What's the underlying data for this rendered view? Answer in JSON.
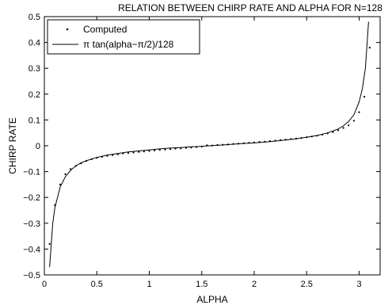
{
  "chart_data": {
    "type": "line",
    "title": "RELATION BETWEEN CHIRP RATE AND ALPHA FOR N=128",
    "xlabel": "ALPHA",
    "ylabel": "CHIRP RATE",
    "xlim": [
      0,
      3.2
    ],
    "ylim": [
      -0.5,
      0.5
    ],
    "xticks": [
      0,
      0.5,
      1,
      1.5,
      2,
      2.5,
      3
    ],
    "xtick_labels": [
      "0",
      "0.5",
      "1",
      "1.5",
      "2",
      "2.5",
      "3"
    ],
    "yticks": [
      -0.5,
      -0.4,
      -0.3,
      -0.2,
      -0.1,
      0,
      0.1,
      0.2,
      0.3,
      0.4,
      0.5
    ],
    "ytick_labels": [
      "−0.5",
      "−0.4",
      "−0.3",
      "−0.2",
      "−0.1",
      "0",
      "0.1",
      "0.2",
      "0.3",
      "0.4",
      "0.5"
    ],
    "grid": false,
    "legend_position": "top-left",
    "colors": {
      "line": "#000000",
      "marker": "#000000",
      "axes": "#000000"
    },
    "series": [
      {
        "name": "Computed",
        "style": "dots",
        "x": [
          0.05,
          0.1,
          0.15,
          0.2,
          0.25,
          0.3,
          0.35,
          0.4,
          0.45,
          0.5,
          0.55,
          0.6,
          0.65,
          0.7,
          0.75,
          0.8,
          0.85,
          0.9,
          0.95,
          1.0,
          1.05,
          1.1,
          1.15,
          1.2,
          1.25,
          1.3,
          1.35,
          1.4,
          1.45,
          1.5,
          1.55,
          1.6,
          1.65,
          1.7,
          1.75,
          1.8,
          1.85,
          1.9,
          1.95,
          2.0,
          2.05,
          2.1,
          2.15,
          2.2,
          2.25,
          2.3,
          2.35,
          2.4,
          2.45,
          2.5,
          2.55,
          2.6,
          2.65,
          2.7,
          2.75,
          2.8,
          2.85,
          2.9,
          2.95,
          3.0,
          3.05,
          3.1
        ],
        "y": [
          -0.38,
          -0.23,
          -0.15,
          -0.11,
          -0.09,
          -0.078,
          -0.068,
          -0.059,
          -0.052,
          -0.047,
          -0.043,
          -0.039,
          -0.036,
          -0.033,
          -0.03,
          -0.028,
          -0.026,
          -0.024,
          -0.022,
          -0.02,
          -0.018,
          -0.016,
          -0.015,
          -0.013,
          -0.011,
          -0.01,
          -0.008,
          -0.007,
          -0.005,
          -0.003,
          0.002,
          0.001,
          0.003,
          0.004,
          0.005,
          0.007,
          0.008,
          0.01,
          0.011,
          0.013,
          0.015,
          0.016,
          0.018,
          0.02,
          0.022,
          0.024,
          0.026,
          0.028,
          0.03,
          0.033,
          0.036,
          0.039,
          0.043,
          0.048,
          0.053,
          0.06,
          0.069,
          0.079,
          0.097,
          0.13,
          0.19,
          0.38
        ]
      },
      {
        "name": "π tan(alpha−π/2)/128",
        "style": "line",
        "x": [
          0.05,
          0.08,
          0.1,
          0.15,
          0.2,
          0.25,
          0.3,
          0.35,
          0.4,
          0.5,
          0.6,
          0.7,
          0.8,
          0.9,
          1.0,
          1.1,
          1.2,
          1.3,
          1.4,
          1.5,
          1.6,
          1.7,
          1.8,
          1.9,
          2.0,
          2.1,
          2.2,
          2.3,
          2.4,
          2.5,
          2.6,
          2.7,
          2.75,
          2.8,
          2.85,
          2.9,
          2.95,
          3.0,
          3.03,
          3.06,
          3.09
        ],
        "y": [
          -0.47,
          -0.3,
          -0.24,
          -0.16,
          -0.12,
          -0.095,
          -0.078,
          -0.066,
          -0.058,
          -0.045,
          -0.036,
          -0.03,
          -0.024,
          -0.02,
          -0.016,
          -0.012,
          -0.009,
          -0.007,
          -0.004,
          -0.002,
          0.001,
          0.003,
          0.006,
          0.009,
          0.011,
          0.014,
          0.018,
          0.022,
          0.027,
          0.033,
          0.04,
          0.05,
          0.057,
          0.065,
          0.077,
          0.094,
          0.12,
          0.17,
          0.22,
          0.3,
          0.48
        ]
      }
    ]
  }
}
